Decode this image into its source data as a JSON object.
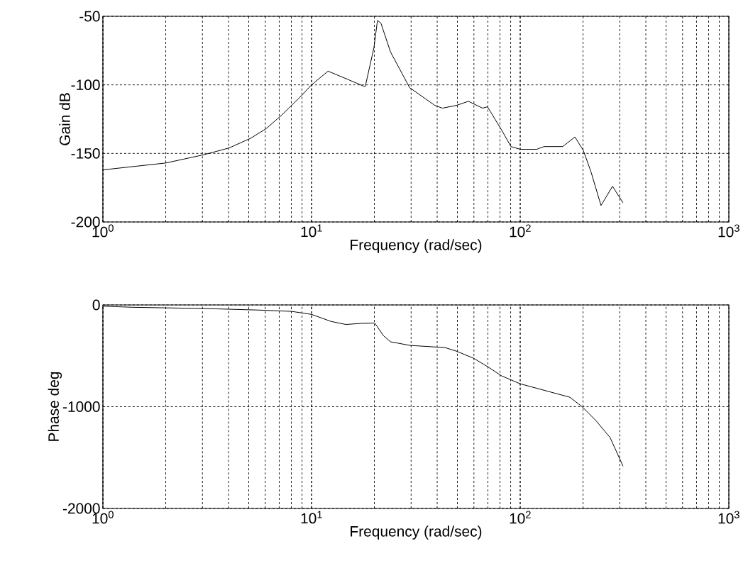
{
  "chart_data": [
    {
      "type": "line",
      "xlabel": "Frequency (rad/sec)",
      "ylabel": "Gain dB",
      "log": "x",
      "grid": true,
      "line_style": "solid",
      "xlim": [
        1,
        1000
      ],
      "ylim": [
        -200,
        -50
      ],
      "xticks": [
        {
          "value": 1,
          "label": "10$^{0}$"
        },
        {
          "value": 10,
          "label": "10$^{1}$"
        },
        {
          "value": 100,
          "label": "10$^{2}$"
        },
        {
          "value": 1000,
          "label": "10$^{3}$"
        }
      ],
      "yticks": [
        -200,
        -150,
        -100,
        -50
      ],
      "series": [
        {
          "color": "#000000",
          "x": [
            1.0,
            2.0,
            3.04,
            4.03,
            5.1,
            6.05,
            7.2,
            8.8,
            10,
            12.0,
            14.9,
            17.8,
            18.1,
            19.9,
            20.7,
            21.5,
            23.9,
            29.5,
            39,
            42.4,
            49.4,
            56.5,
            66,
            69.7,
            81.5,
            90.3,
            100,
            120,
            130,
            160,
            183,
            201,
            219,
            244,
            277,
            311
          ],
          "values": [
            -162,
            -157,
            -151,
            -146,
            -139,
            -132,
            -122,
            -109,
            -100,
            -90,
            -96,
            -101,
            -101,
            -73,
            -53,
            -55,
            -76,
            -102,
            -115,
            -117,
            -115,
            -112,
            -117,
            -116,
            -133,
            -145,
            -147,
            -147,
            -145,
            -145,
            -138,
            -148,
            -164,
            -188,
            -174,
            -186
          ]
        }
      ]
    },
    {
      "type": "line",
      "xlabel": "Frequency (rad/sec)",
      "ylabel": "Phase deg",
      "log": "x",
      "grid": true,
      "line_style": "solid",
      "xlim": [
        1,
        1000
      ],
      "ylim": [
        -2000,
        0
      ],
      "xticks": [
        {
          "value": 1,
          "label": "10$^{0}$"
        },
        {
          "value": 10,
          "label": "10$^{1}$"
        },
        {
          "value": 100,
          "label": "10$^{2}$"
        },
        {
          "value": 1000,
          "label": "10$^{3}$"
        }
      ],
      "yticks": [
        -2000,
        -1000,
        0
      ],
      "series": [
        {
          "color": "#000000",
          "x": [
            1.0,
            1.38,
            3.04,
            5.5,
            8.0,
            10,
            12.4,
            14.6,
            17.4,
            20.1,
            22.1,
            23.9,
            29.7,
            43.6,
            49.4,
            59.7,
            69.8,
            81.6,
            100,
            137,
            173,
            198,
            231,
            270,
            311
          ],
          "values": [
            -12,
            -23,
            -35,
            -50,
            -63,
            -93,
            -162,
            -192,
            -181,
            -178,
            -302,
            -362,
            -398,
            -419,
            -454,
            -523,
            -607,
            -698,
            -775,
            -851,
            -907,
            -1000,
            -1138,
            -1305,
            -1584
          ]
        }
      ]
    }
  ]
}
